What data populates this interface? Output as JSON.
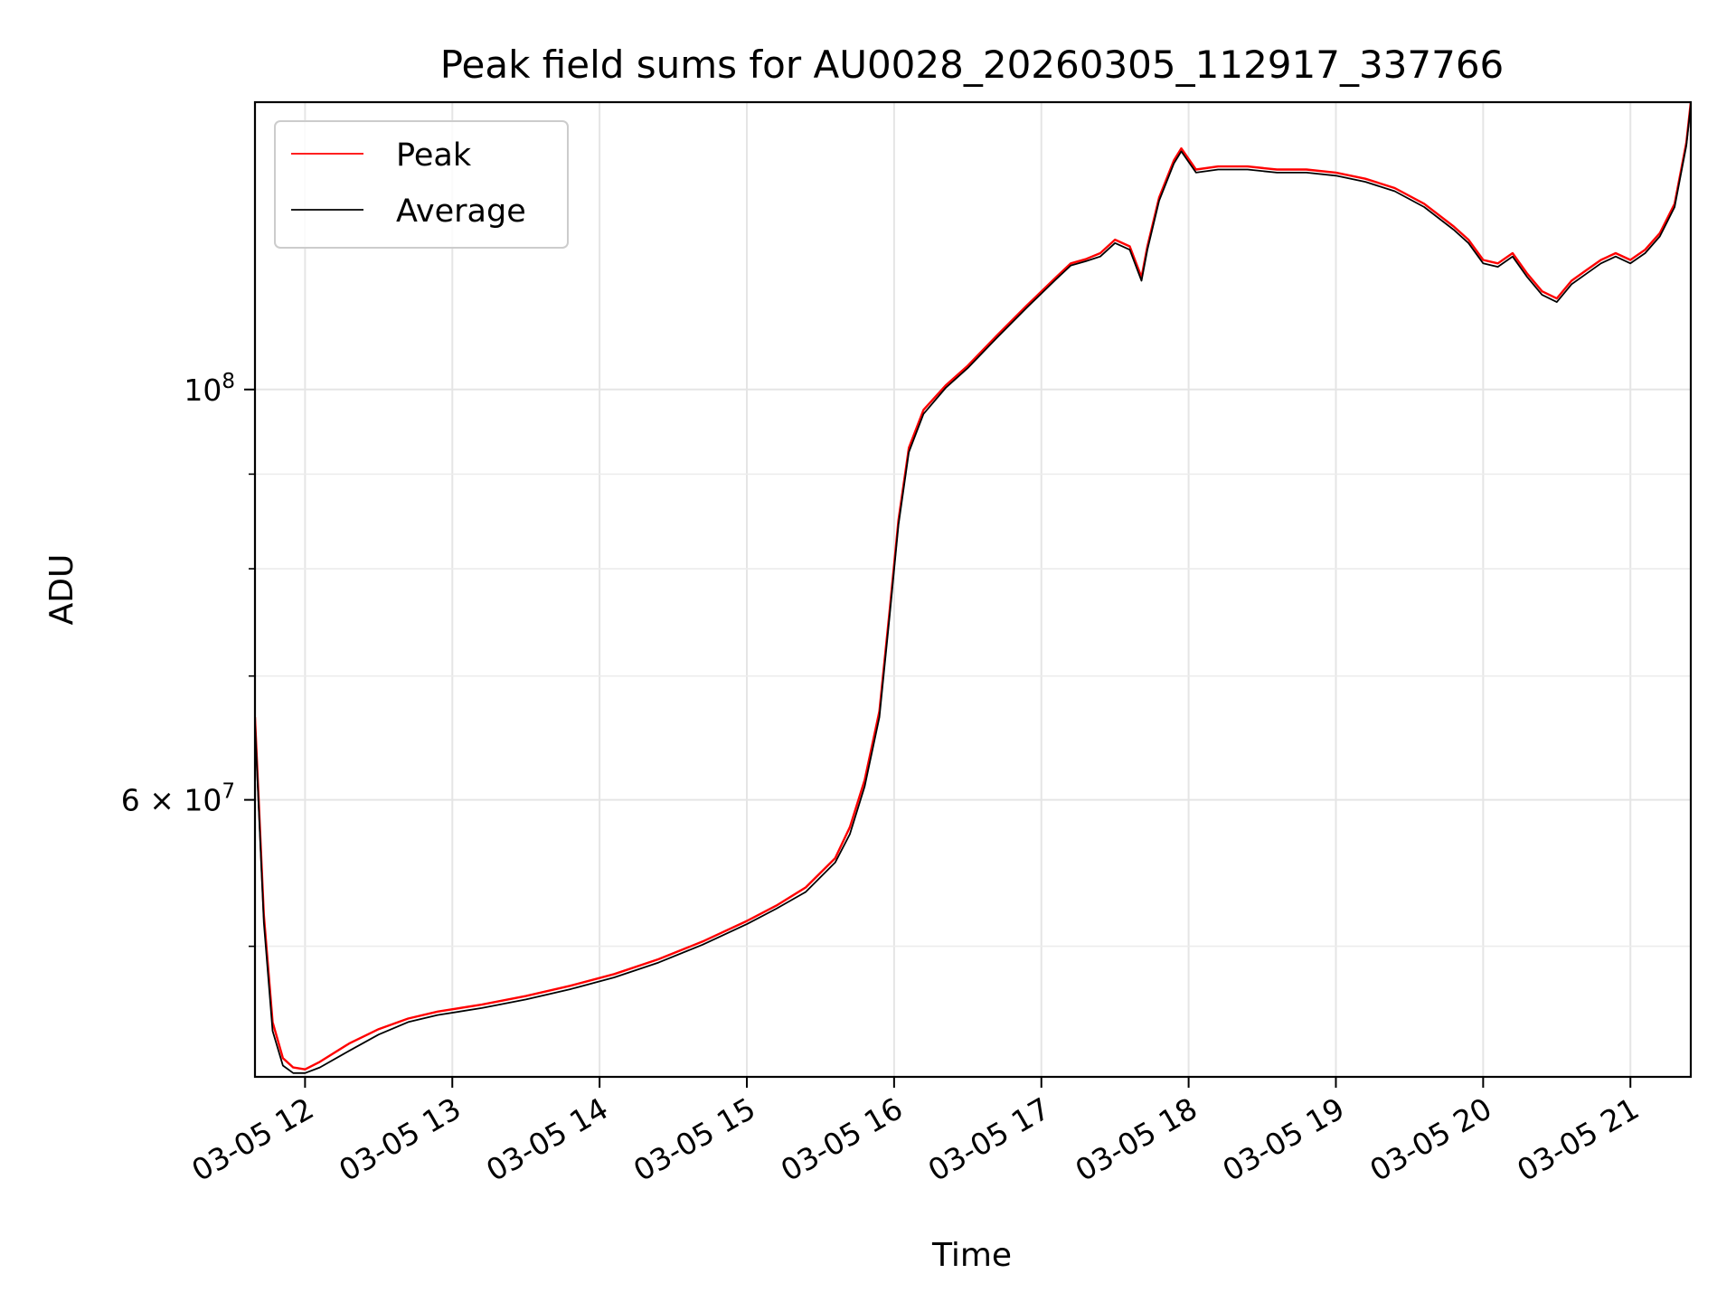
{
  "chart_data": {
    "type": "line",
    "title": "Peak field sums for AU0028_20260305_112917_337766",
    "xlabel": "Time",
    "ylabel": "ADU",
    "x_unit": "hours (03-05)",
    "xlim": [
      11.66,
      21.41
    ],
    "ylim": [
      42500000,
      143000000
    ],
    "yscale": "log",
    "grid": true,
    "legend_position": "top-left",
    "x_ticks": [
      {
        "value": 12,
        "label": "03-05 12"
      },
      {
        "value": 13,
        "label": "03-05 13"
      },
      {
        "value": 14,
        "label": "03-05 14"
      },
      {
        "value": 15,
        "label": "03-05 15"
      },
      {
        "value": 16,
        "label": "03-05 16"
      },
      {
        "value": 17,
        "label": "03-05 17"
      },
      {
        "value": 18,
        "label": "03-05 18"
      },
      {
        "value": 19,
        "label": "03-05 19"
      },
      {
        "value": 20,
        "label": "03-05 20"
      },
      {
        "value": 21,
        "label": "03-05 21"
      }
    ],
    "y_major_ticks": [
      {
        "value": 100000000,
        "mantissa": "",
        "exponent": "8",
        "label": "10^8"
      },
      {
        "value": 60000000,
        "mantissa": "6 × ",
        "exponent": "7",
        "label": "6×10^7"
      }
    ],
    "y_minor_ticks": [
      50000000,
      70000000,
      80000000,
      90000000
    ],
    "x": [
      11.66,
      11.72,
      11.78,
      11.85,
      11.92,
      12.0,
      12.1,
      12.3,
      12.5,
      12.7,
      12.9,
      13.2,
      13.5,
      13.8,
      14.1,
      14.4,
      14.7,
      15.0,
      15.2,
      15.4,
      15.6,
      15.7,
      15.8,
      15.9,
      15.97,
      16.03,
      16.1,
      16.2,
      16.35,
      16.5,
      16.7,
      16.9,
      17.1,
      17.2,
      17.3,
      17.4,
      17.5,
      17.6,
      17.68,
      17.72,
      17.8,
      17.9,
      17.95,
      18.05,
      18.2,
      18.4,
      18.6,
      18.8,
      19.0,
      19.2,
      19.4,
      19.6,
      19.8,
      19.9,
      20.0,
      20.1,
      20.2,
      20.3,
      20.4,
      20.5,
      20.6,
      20.7,
      20.8,
      20.9,
      21.0,
      21.1,
      21.2,
      21.3,
      21.38,
      21.41
    ],
    "series": [
      {
        "name": "Peak",
        "color": "#ff0000",
        "values": [
          66500000,
          52000000,
          45500000,
          43500000,
          43000000,
          42900000,
          43300000,
          44300000,
          45100000,
          45700000,
          46100000,
          46500000,
          47000000,
          47600000,
          48300000,
          49200000,
          50300000,
          51600000,
          52600000,
          53800000,
          55800000,
          58000000,
          61500000,
          67000000,
          76000000,
          85000000,
          93000000,
          97500000,
          100500000,
          103000000,
          107000000,
          111000000,
          115000000,
          117000000,
          117600000,
          118500000,
          120500000,
          119500000,
          115000000,
          119500000,
          127000000,
          133000000,
          135000000,
          131500000,
          132000000,
          132000000,
          131500000,
          131500000,
          131000000,
          130000000,
          128500000,
          126000000,
          122500000,
          120500000,
          117500000,
          117000000,
          118500000,
          115500000,
          113000000,
          112000000,
          114500000,
          116000000,
          117500000,
          118500000,
          117500000,
          119000000,
          121500000,
          126000000,
          136000000,
          143000000
        ]
      },
      {
        "name": "Average",
        "color": "#000000",
        "values": [
          66000000,
          51500000,
          45000000,
          43100000,
          42700000,
          42700000,
          43000000,
          43900000,
          44800000,
          45500000,
          45900000,
          46300000,
          46800000,
          47400000,
          48100000,
          49000000,
          50100000,
          51400000,
          52400000,
          53500000,
          55500000,
          57500000,
          61000000,
          66500000,
          75500000,
          84500000,
          92500000,
          97000000,
          100200000,
          102700000,
          106700000,
          110700000,
          114700000,
          116700000,
          117300000,
          118000000,
          120000000,
          119000000,
          114500000,
          119000000,
          126500000,
          132500000,
          134500000,
          131000000,
          131500000,
          131500000,
          131000000,
          131000000,
          130500000,
          129500000,
          128000000,
          125500000,
          122000000,
          120000000,
          117000000,
          116500000,
          118000000,
          115000000,
          112500000,
          111500000,
          114000000,
          115500000,
          117000000,
          118000000,
          117000000,
          118500000,
          121000000,
          125500000,
          135500000,
          142500000
        ]
      }
    ]
  }
}
